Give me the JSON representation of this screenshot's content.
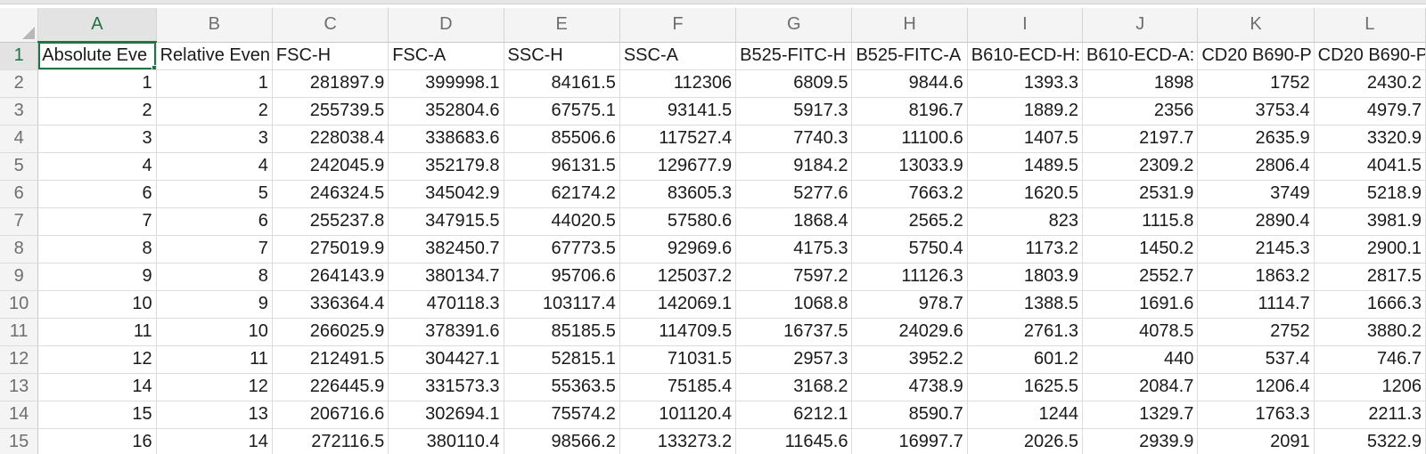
{
  "columns": [
    "A",
    "B",
    "C",
    "D",
    "E",
    "F",
    "G",
    "H",
    "I",
    "J",
    "K",
    "L"
  ],
  "selected_cell": "A1",
  "header_row": {
    "row_number": "1",
    "cells": [
      "Absolute Eve",
      "Relative Even",
      "FSC-H",
      "FSC-A",
      "SSC-H",
      "SSC-A",
      "B525-FITC-H",
      "B525-FITC-A",
      "B610-ECD-H:",
      "B610-ECD-A:",
      "CD20 B690-P",
      "CD20 B690-P"
    ]
  },
  "rows": [
    {
      "n": "2",
      "cells": [
        "1",
        "1",
        "281897.9",
        "399998.1",
        "84161.5",
        "112306",
        "6809.5",
        "9844.6",
        "1393.3",
        "1898",
        "1752",
        "2430.2"
      ]
    },
    {
      "n": "3",
      "cells": [
        "2",
        "2",
        "255739.5",
        "352804.6",
        "67575.1",
        "93141.5",
        "5917.3",
        "8196.7",
        "1889.2",
        "2356",
        "3753.4",
        "4979.7"
      ]
    },
    {
      "n": "4",
      "cells": [
        "3",
        "3",
        "228038.4",
        "338683.6",
        "85506.6",
        "117527.4",
        "7740.3",
        "11100.6",
        "1407.5",
        "2197.7",
        "2635.9",
        "3320.9"
      ]
    },
    {
      "n": "5",
      "cells": [
        "4",
        "4",
        "242045.9",
        "352179.8",
        "96131.5",
        "129677.9",
        "9184.2",
        "13033.9",
        "1489.5",
        "2309.2",
        "2806.4",
        "4041.5"
      ]
    },
    {
      "n": "6",
      "cells": [
        "6",
        "5",
        "246324.5",
        "345042.9",
        "62174.2",
        "83605.3",
        "5277.6",
        "7663.2",
        "1620.5",
        "2531.9",
        "3749",
        "5218.9"
      ]
    },
    {
      "n": "7",
      "cells": [
        "7",
        "6",
        "255237.8",
        "347915.5",
        "44020.5",
        "57580.6",
        "1868.4",
        "2565.2",
        "823",
        "1115.8",
        "2890.4",
        "3981.9"
      ]
    },
    {
      "n": "8",
      "cells": [
        "8",
        "7",
        "275019.9",
        "382450.7",
        "67773.5",
        "92969.6",
        "4175.3",
        "5750.4",
        "1173.2",
        "1450.2",
        "2145.3",
        "2900.1"
      ]
    },
    {
      "n": "9",
      "cells": [
        "9",
        "8",
        "264143.9",
        "380134.7",
        "95706.6",
        "125037.2",
        "7597.2",
        "11126.3",
        "1803.9",
        "2552.7",
        "1863.2",
        "2817.5"
      ]
    },
    {
      "n": "10",
      "cells": [
        "10",
        "9",
        "336364.4",
        "470118.3",
        "103117.4",
        "142069.1",
        "1068.8",
        "978.7",
        "1388.5",
        "1691.6",
        "1114.7",
        "1666.3"
      ]
    },
    {
      "n": "11",
      "cells": [
        "11",
        "10",
        "266025.9",
        "378391.6",
        "85185.5",
        "114709.5",
        "16737.5",
        "24029.6",
        "2761.3",
        "4078.5",
        "2752",
        "3880.2"
      ]
    },
    {
      "n": "12",
      "cells": [
        "12",
        "11",
        "212491.5",
        "304427.1",
        "52815.1",
        "71031.5",
        "2957.3",
        "3952.2",
        "601.2",
        "440",
        "537.4",
        "746.7"
      ]
    },
    {
      "n": "13",
      "cells": [
        "14",
        "12",
        "226445.9",
        "331573.3",
        "55363.5",
        "75185.4",
        "3168.2",
        "4738.9",
        "1625.5",
        "2084.7",
        "1206.4",
        "1206"
      ]
    },
    {
      "n": "14",
      "cells": [
        "15",
        "13",
        "206716.6",
        "302694.1",
        "75574.2",
        "101120.4",
        "6212.1",
        "8590.7",
        "1244",
        "1329.7",
        "1763.3",
        "2211.3"
      ]
    },
    {
      "n": "15",
      "cells": [
        "16",
        "14",
        "272116.5",
        "380110.4",
        "98566.2",
        "133273.2",
        "11645.6",
        "16997.7",
        "2026.5",
        "2939.9",
        "2091",
        "5322.9"
      ]
    }
  ]
}
